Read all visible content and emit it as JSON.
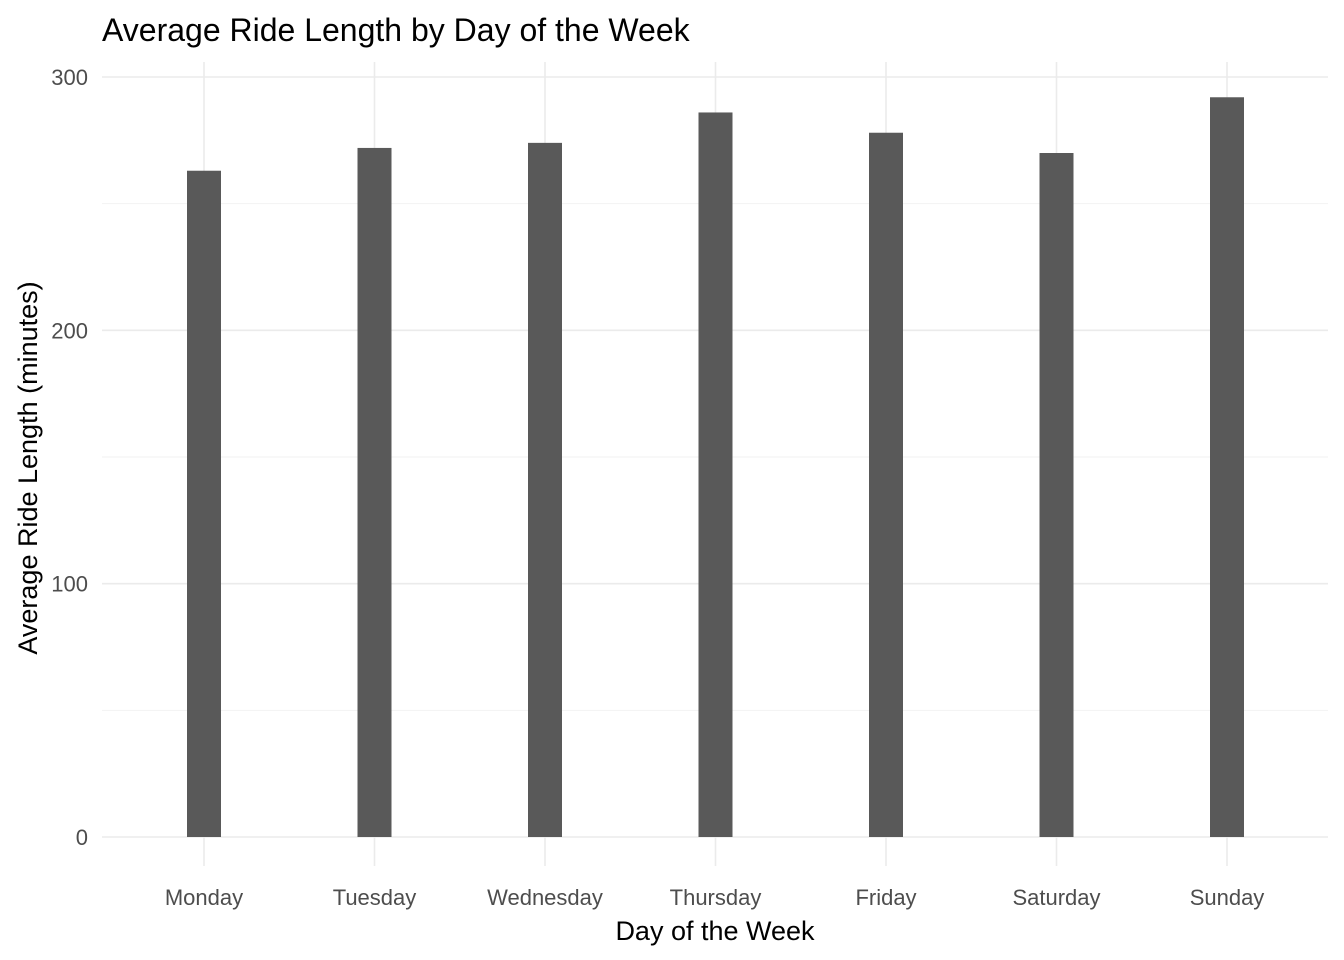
{
  "chart_data": {
    "type": "bar",
    "title": "Average Ride Length by Day of the Week",
    "xlabel": "Day of the Week",
    "ylabel": "Average Ride Length (minutes)",
    "categories": [
      "Monday",
      "Tuesday",
      "Wednesday",
      "Thursday",
      "Friday",
      "Saturday",
      "Sunday"
    ],
    "values": [
      263,
      272,
      274,
      286,
      278,
      270,
      292
    ],
    "ylim": [
      0,
      300
    ],
    "yticks": [
      0,
      100,
      200,
      300
    ],
    "grid": true,
    "legend": "none",
    "colors": {
      "bar": "#595959",
      "grid_major": "#ebebeb",
      "grid_minor": "#f2f2f2",
      "tick_text": "#4d4d4d",
      "text": "#000000"
    }
  }
}
